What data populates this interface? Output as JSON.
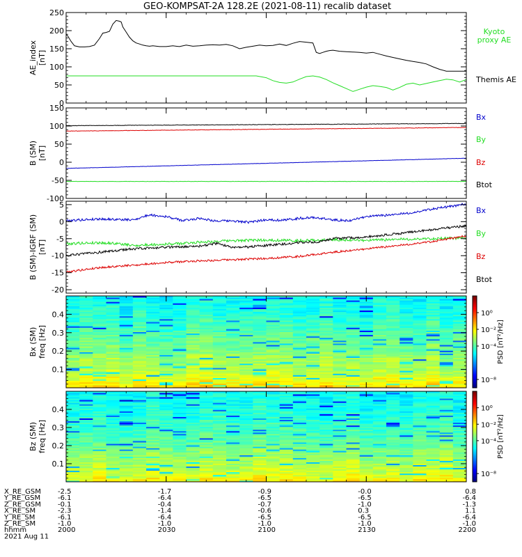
{
  "title": "GEO-KOMPSAT-2A 128.2E (2021-08-11) recalib dataset",
  "colors": {
    "black": "#000000",
    "green": "#22dd22",
    "blue": "#0000cc",
    "red": "#dd0000"
  },
  "x_axis": {
    "ticks": [
      {
        "value": 0,
        "label": "2000"
      },
      {
        "value": 30,
        "label": "2030"
      },
      {
        "value": 60,
        "label": "2100"
      },
      {
        "value": 90,
        "label": "2130"
      },
      {
        "value": 120,
        "label": "2200"
      }
    ],
    "range": [
      0,
      120
    ],
    "minor_step": 6
  },
  "ephemeris": {
    "rows": [
      {
        "label": "X_RE_GSM",
        "values": [
          "-2.5",
          "-1.7",
          "-0.9",
          "-0.0",
          "0.8"
        ]
      },
      {
        "label": "Y_RE_GSM",
        "values": [
          "-6.1",
          "-6.4",
          "-6.5",
          "-6.5",
          "-6.4"
        ]
      },
      {
        "label": "Z_RE_GSM",
        "values": [
          "-0.1",
          "-0.4",
          "-0.7",
          "-1.0",
          "-1.3"
        ]
      },
      {
        "label": "X_RE_SM",
        "values": [
          "-2.3",
          "-1.4",
          "-0.6",
          "0.3",
          "1.1"
        ]
      },
      {
        "label": "Y_RE_SM",
        "values": [
          "-6.1",
          "-6.4",
          "-6.5",
          "-6.5",
          "-6.4"
        ]
      },
      {
        "label": "Z_RE_SM",
        "values": [
          "-1.0",
          "-1.0",
          "-1.0",
          "-1.0",
          "-1.0"
        ]
      },
      {
        "label": "hhmm",
        "values": [
          "2000",
          "2030",
          "2100",
          "2130",
          "2200"
        ]
      }
    ],
    "date": "2021 Aug 11"
  },
  "chart_data": [
    {
      "type": "line",
      "ylabel": "AE_index",
      "yunit": "[nT]",
      "ylim": [
        0,
        250
      ],
      "yticks": [
        0,
        50,
        100,
        150,
        200,
        250
      ],
      "ytick_labels": [
        "0",
        "50",
        "100",
        "150",
        "200",
        "250"
      ],
      "minor_step": 10,
      "legend": [
        {
          "text": "Kyoto",
          "color": "green"
        },
        {
          "text": "proxy AE",
          "color": "green"
        },
        {
          "text": "Themis AE",
          "color": "black"
        }
      ],
      "series": [
        {
          "name": "Themis AE",
          "color": "black",
          "x": [
            0,
            0.5,
            1.5,
            2.5,
            4,
            5.5,
            7,
            8.5,
            10,
            11,
            12,
            13,
            14,
            15,
            16,
            16.5,
            17,
            18,
            19,
            20,
            21,
            22,
            23,
            24,
            25,
            26,
            28,
            30,
            32,
            34,
            36,
            38,
            40,
            42,
            44,
            46,
            48,
            50,
            52,
            54,
            56,
            58,
            60,
            62,
            64,
            66,
            68,
            70,
            72,
            74,
            75,
            76,
            77,
            78,
            79,
            80,
            82,
            84,
            86,
            88,
            90,
            92,
            94,
            96,
            98,
            100,
            102,
            104,
            106,
            108,
            110,
            112,
            114,
            116,
            118,
            120
          ],
          "y": [
            190,
            185,
            170,
            158,
            155,
            155,
            156,
            160,
            178,
            193,
            195,
            198,
            218,
            228,
            226,
            224,
            210,
            196,
            182,
            172,
            166,
            163,
            160,
            158,
            157,
            158,
            156,
            156,
            158,
            156,
            160,
            157,
            158,
            160,
            161,
            160,
            162,
            158,
            150,
            154,
            157,
            160,
            158,
            159,
            163,
            159,
            165,
            170,
            168,
            166,
            140,
            137,
            140,
            143,
            145,
            146,
            143,
            142,
            141,
            140,
            138,
            140,
            135,
            130,
            126,
            122,
            118,
            115,
            112,
            108,
            100,
            93,
            88,
            88,
            88,
            88
          ]
        },
        {
          "name": "Kyoto proxy AE",
          "color": "green",
          "x": [
            0,
            10,
            20,
            30,
            40,
            50,
            55,
            57,
            60,
            62,
            64,
            66,
            68,
            70,
            72,
            74,
            76,
            78,
            80,
            82,
            84,
            86,
            88,
            90,
            92,
            94,
            96,
            98,
            100,
            102,
            104,
            106,
            108,
            110,
            112,
            114,
            116,
            118,
            120
          ],
          "y": [
            75,
            75,
            75,
            75,
            75,
            75,
            75,
            75,
            70,
            62,
            57,
            55,
            58,
            66,
            73,
            75,
            72,
            65,
            56,
            48,
            40,
            32,
            38,
            44,
            48,
            46,
            43,
            36,
            43,
            52,
            55,
            50,
            54,
            58,
            62,
            66,
            64,
            58,
            65
          ]
        }
      ]
    },
    {
      "type": "line",
      "ylabel": "B (SM)",
      "yunit": "[nT]",
      "ylim": [
        -100,
        150
      ],
      "yticks": [
        -100,
        -50,
        0,
        50,
        100,
        150
      ],
      "ytick_labels": [
        "-100",
        "-50",
        "0",
        "50",
        "100",
        "150"
      ],
      "minor_step": 10,
      "legend": [
        {
          "text": "Bx",
          "color": "blue"
        },
        {
          "text": "By",
          "color": "green"
        },
        {
          "text": "Bz",
          "color": "red"
        },
        {
          "text": "Btot",
          "color": "black"
        }
      ],
      "series": [
        {
          "name": "Btot",
          "color": "black",
          "x": [
            0,
            120
          ],
          "y": [
            101,
            107
          ],
          "noise": 0.6
        },
        {
          "name": "Bz",
          "color": "red",
          "x": [
            0,
            120
          ],
          "y": [
            86,
            96
          ],
          "noise": 0.6
        },
        {
          "name": "Bx",
          "color": "blue",
          "x": [
            0,
            120
          ],
          "y": [
            -17,
            11
          ],
          "noise": 0.4
        },
        {
          "name": "By",
          "color": "green",
          "x": [
            0,
            120
          ],
          "y": [
            -53,
            -53
          ],
          "noise": 0.4
        }
      ]
    },
    {
      "type": "line",
      "ylabel": "B (SM)-IGRF (SM)",
      "yunit": "[nT]",
      "ylim": [
        -21,
        6
      ],
      "yticks": [
        -20,
        -15,
        -10,
        -5,
        0,
        5
      ],
      "ytick_labels": [
        "-20",
        "-15",
        "-10",
        "-5",
        "0",
        "5"
      ],
      "minor_step": 1,
      "legend": [
        {
          "text": "Bx",
          "color": "blue"
        },
        {
          "text": "By",
          "color": "green"
        },
        {
          "text": "Bz",
          "color": "red"
        },
        {
          "text": "Btot",
          "color": "black"
        }
      ],
      "series": [
        {
          "name": "Bx",
          "color": "blue",
          "x": [
            0,
            10,
            20,
            25,
            30,
            35,
            40,
            45,
            50,
            55,
            60,
            65,
            70,
            75,
            80,
            85,
            90,
            95,
            100,
            105,
            110,
            115,
            120
          ],
          "y": [
            0.3,
            0.8,
            0.5,
            2,
            1.5,
            0.3,
            1,
            0.2,
            0.2,
            -0.2,
            0.6,
            0.4,
            1,
            1.2,
            0.5,
            0.3,
            1.5,
            1.8,
            2.2,
            2.8,
            3.8,
            4.4,
            5.2
          ],
          "noise": 0.35
        },
        {
          "name": "By",
          "color": "green",
          "x": [
            0,
            5,
            10,
            15,
            20,
            25,
            30,
            35,
            40,
            45,
            50,
            60,
            70,
            80,
            90,
            100,
            110,
            120
          ],
          "y": [
            -6.5,
            -6.3,
            -6.2,
            -6.4,
            -7,
            -6.8,
            -6.6,
            -6.4,
            -6,
            -5.8,
            -5.6,
            -5.4,
            -5.6,
            -5.3,
            -5.5,
            -5.2,
            -5,
            -4.8
          ],
          "noise": 0.4
        },
        {
          "name": "Btot",
          "color": "black",
          "x": [
            0,
            10,
            20,
            30,
            40,
            45,
            50,
            55,
            60,
            65,
            70,
            75,
            80,
            90,
            100,
            110,
            120
          ],
          "y": [
            -10,
            -9,
            -8,
            -7.5,
            -7.2,
            -6.4,
            -7.5,
            -7.4,
            -7,
            -6.6,
            -6.1,
            -6,
            -5,
            -4.5,
            -3.5,
            -2.3,
            -1.2
          ],
          "noise": 0.35
        },
        {
          "name": "Bz",
          "color": "red",
          "x": [
            0,
            10,
            20,
            30,
            40,
            50,
            60,
            70,
            80,
            90,
            100,
            110,
            120
          ],
          "y": [
            -14.8,
            -13.5,
            -12.8,
            -12,
            -11.5,
            -11.2,
            -10.8,
            -10.2,
            -9,
            -8,
            -7,
            -5.8,
            -4.2
          ],
          "noise": 0.3
        }
      ]
    },
    {
      "type": "heatmap",
      "ylabel": "Bx (SM)",
      "yunit": "freq [Hz]",
      "ylim": [
        0,
        0.5
      ],
      "yticks": [
        0.1,
        0.2,
        0.3,
        0.4
      ],
      "ytick_labels": [
        "0.1",
        "0.2",
        "0.3",
        "0.4"
      ],
      "minor_step": 0.02,
      "colorbar": {
        "label": "PSD [nT²/Hz]",
        "range_log10": [
          -9,
          2
        ],
        "ticks": [
          {
            "value": 0,
            "label": "10⁰"
          },
          {
            "value": -2,
            "label": "10⁻²"
          },
          {
            "value": -4,
            "label": "10⁻⁴"
          },
          {
            "value": -8,
            "label": "10⁻⁸"
          }
        ]
      },
      "time_bins": 30,
      "freq_bins": 64,
      "profile_log10": [
        [
          0,
          -1.5
        ],
        [
          0.03,
          -2.2
        ],
        [
          0.1,
          -3.0
        ],
        [
          0.17,
          -3.2
        ],
        [
          0.2,
          -3.6
        ],
        [
          0.3,
          -4.0
        ],
        [
          0.4,
          -4.6
        ],
        [
          0.5,
          -4.8
        ]
      ],
      "seed": 7
    },
    {
      "type": "heatmap",
      "ylabel": "Bz (SM)",
      "yunit": "freq [Hz]",
      "ylim": [
        0,
        0.5
      ],
      "yticks": [
        0.1,
        0.2,
        0.3,
        0.4
      ],
      "ytick_labels": [
        "0.1",
        "0.2",
        "0.3",
        "0.4"
      ],
      "minor_step": 0.02,
      "colorbar": {
        "label": "PSD [nT²/Hz]",
        "range_log10": [
          -9,
          2
        ],
        "ticks": [
          {
            "value": 0,
            "label": "10⁰"
          },
          {
            "value": -2,
            "label": "10⁻²"
          },
          {
            "value": -4,
            "label": "10⁻⁴"
          },
          {
            "value": -8,
            "label": "10⁻⁸"
          }
        ]
      },
      "time_bins": 30,
      "freq_bins": 64,
      "profile_log10": [
        [
          0,
          -1.8
        ],
        [
          0.03,
          -2.4
        ],
        [
          0.1,
          -3.0
        ],
        [
          0.16,
          -3.3
        ],
        [
          0.2,
          -3.8
        ],
        [
          0.3,
          -4.2
        ],
        [
          0.4,
          -4.6
        ],
        [
          0.5,
          -4.8
        ]
      ],
      "seed": 13
    }
  ]
}
